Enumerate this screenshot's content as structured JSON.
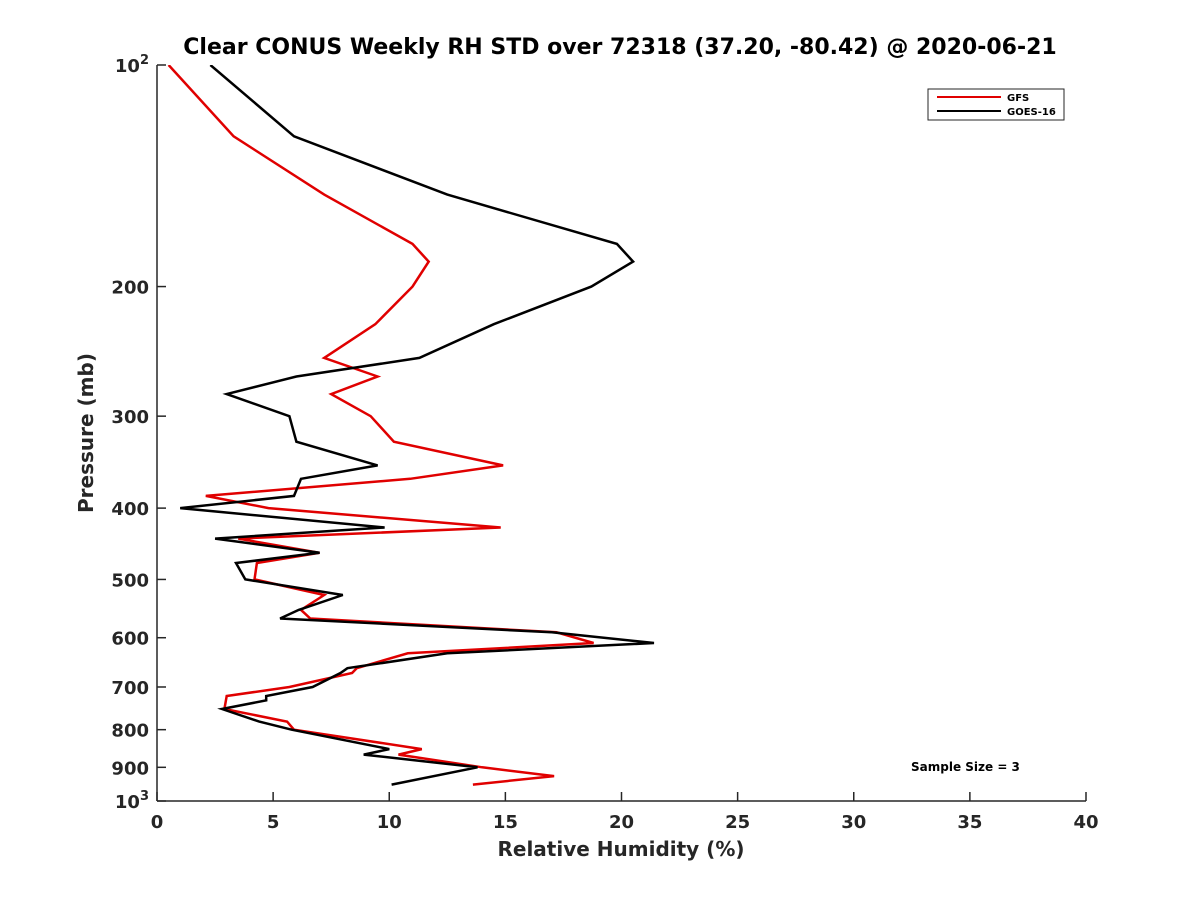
{
  "chart_data": {
    "type": "line",
    "title": "Clear CONUS Weekly RH STD over 72318 (37.20, -80.42) @ 2020-06-21",
    "xlabel": "Relative Humidity (%)",
    "ylabel": "Pressure (mb)",
    "xlim": [
      0,
      40
    ],
    "ylim": [
      100,
      1000
    ],
    "y_scale": "log",
    "y_reversed": true,
    "grid": false,
    "legend_position": "top-right",
    "x_ticks": [
      0,
      5,
      10,
      15,
      20,
      25,
      30,
      35,
      40
    ],
    "x_tick_labels": [
      "0",
      "5",
      "10",
      "15",
      "20",
      "25",
      "30",
      "35",
      "40"
    ],
    "y_ticks": [
      100,
      200,
      300,
      400,
      500,
      600,
      700,
      800,
      900,
      1000
    ],
    "y_tick_labels": [
      {
        "base": "10",
        "exp": "2"
      },
      {
        "base": "200",
        "exp": ""
      },
      {
        "base": "300",
        "exp": ""
      },
      {
        "base": "400",
        "exp": ""
      },
      {
        "base": "500",
        "exp": ""
      },
      {
        "base": "600",
        "exp": ""
      },
      {
        "base": "700",
        "exp": ""
      },
      {
        "base": "800",
        "exp": ""
      },
      {
        "base": "900",
        "exp": ""
      },
      {
        "base": "10",
        "exp": "3"
      }
    ],
    "annotation": "Sample Size = 3",
    "series": [
      {
        "name": "GFS",
        "color": "#e00000",
        "points": [
          [
            0.5,
            100
          ],
          [
            3.3,
            125
          ],
          [
            7.2,
            150
          ],
          [
            11.0,
            175
          ],
          [
            11.7,
            185
          ],
          [
            11.0,
            200
          ],
          [
            9.4,
            225
          ],
          [
            7.2,
            250
          ],
          [
            9.5,
            265
          ],
          [
            7.5,
            280
          ],
          [
            9.2,
            300
          ],
          [
            10.2,
            325
          ],
          [
            14.9,
            350
          ],
          [
            10.9,
            365
          ],
          [
            2.1,
            385
          ],
          [
            4.8,
            400
          ],
          [
            14.8,
            425
          ],
          [
            3.5,
            440
          ],
          [
            7.0,
            460
          ],
          [
            4.3,
            475
          ],
          [
            4.2,
            500
          ],
          [
            7.2,
            525
          ],
          [
            6.2,
            550
          ],
          [
            6.6,
            565
          ],
          [
            17.2,
            590
          ],
          [
            18.8,
            610
          ],
          [
            10.8,
            630
          ],
          [
            8.6,
            660
          ],
          [
            8.4,
            670
          ],
          [
            5.7,
            700
          ],
          [
            3.0,
            720
          ],
          [
            2.9,
            750
          ],
          [
            5.6,
            780
          ],
          [
            5.9,
            800
          ],
          [
            11.4,
            850
          ],
          [
            10.4,
            865
          ],
          [
            14.0,
            900
          ],
          [
            17.1,
            925
          ],
          [
            13.6,
            950
          ]
        ]
      },
      {
        "name": "GOES-16",
        "color": "#000000",
        "points": [
          [
            2.3,
            100
          ],
          [
            5.9,
            125
          ],
          [
            12.5,
            150
          ],
          [
            19.8,
            175
          ],
          [
            20.5,
            185
          ],
          [
            18.7,
            200
          ],
          [
            14.5,
            225
          ],
          [
            11.3,
            250
          ],
          [
            6.0,
            265
          ],
          [
            3.0,
            280
          ],
          [
            5.7,
            300
          ],
          [
            6.0,
            325
          ],
          [
            9.5,
            350
          ],
          [
            6.2,
            365
          ],
          [
            5.9,
            385
          ],
          [
            1.0,
            400
          ],
          [
            9.8,
            425
          ],
          [
            2.5,
            440
          ],
          [
            7.0,
            460
          ],
          [
            3.4,
            475
          ],
          [
            3.8,
            500
          ],
          [
            8.0,
            525
          ],
          [
            6.1,
            550
          ],
          [
            5.3,
            565
          ],
          [
            17.0,
            590
          ],
          [
            21.4,
            610
          ],
          [
            12.5,
            630
          ],
          [
            8.2,
            660
          ],
          [
            7.9,
            670
          ],
          [
            6.7,
            700
          ],
          [
            4.7,
            720
          ],
          [
            4.7,
            730
          ],
          [
            2.8,
            750
          ],
          [
            4.4,
            780
          ],
          [
            5.8,
            800
          ],
          [
            10.0,
            850
          ],
          [
            8.9,
            865
          ],
          [
            13.8,
            900
          ],
          [
            10.1,
            950
          ]
        ]
      }
    ]
  }
}
